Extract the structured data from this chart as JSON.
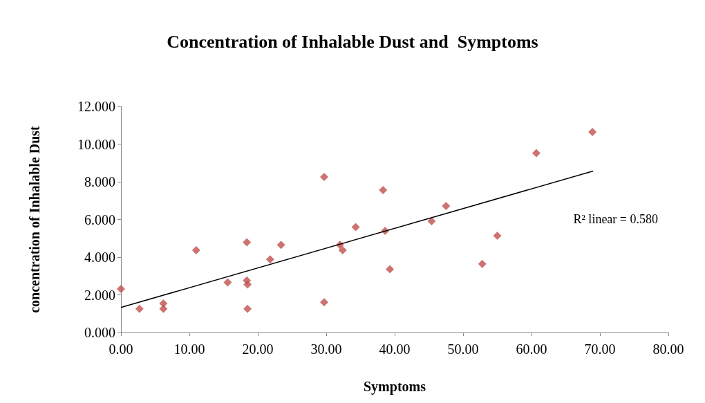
{
  "chart_data": {
    "type": "scatter",
    "title": "Concentration of Inhalable Dust and  Symptoms",
    "xlabel": "Symptoms",
    "ylabel": "concentration of Inhalable Dust",
    "xlim": [
      0,
      80
    ],
    "xticks": [
      {
        "value": 0,
        "label": "0.00"
      },
      {
        "value": 10,
        "label": "10.00"
      },
      {
        "value": 20,
        "label": "20.00"
      },
      {
        "value": 30,
        "label": "30.00"
      },
      {
        "value": 40,
        "label": "40.00"
      },
      {
        "value": 50,
        "label": "50.00"
      },
      {
        "value": 60,
        "label": "60.00"
      },
      {
        "value": 70,
        "label": "70.00"
      },
      {
        "value": 80,
        "label": "80.00"
      }
    ],
    "ylim": [
      0,
      12
    ],
    "yticks": [
      {
        "value": 0,
        "label": "0.000"
      },
      {
        "value": 2,
        "label": "2.000"
      },
      {
        "value": 4,
        "label": "4.000"
      },
      {
        "value": 6,
        "label": "6.000"
      },
      {
        "value": 8,
        "label": "8.000"
      },
      {
        "value": 10,
        "label": "10.000"
      },
      {
        "value": 12,
        "label": "12.000"
      }
    ],
    "grid": false,
    "marker": "diamond",
    "annotations": [
      "R² linear = 0.580"
    ],
    "series": [
      {
        "color": "#c0504d",
        "x": [
          0,
          2.7,
          6.2,
          6.2,
          11.0,
          15.6,
          18.4,
          18.5,
          18.4,
          18.5,
          21.8,
          23.4,
          29.7,
          29.7,
          32.0,
          32.4,
          34.3,
          38.3,
          38.6,
          39.3,
          45.4,
          47.5,
          52.8,
          55.0,
          60.7,
          68.9
        ],
        "values": [
          2.31,
          1.26,
          1.54,
          1.26,
          4.37,
          2.66,
          2.76,
          2.55,
          4.79,
          1.26,
          3.88,
          4.65,
          8.26,
          1.61,
          4.65,
          4.37,
          5.6,
          7.56,
          5.39,
          3.36,
          5.91,
          6.72,
          3.64,
          5.14,
          9.52,
          10.64
        ]
      },
      {
        "type": "line",
        "color": "#000000",
        "marker": "none",
        "x": [
          0,
          69
        ],
        "values": [
          1.33,
          8.57
        ]
      }
    ]
  }
}
